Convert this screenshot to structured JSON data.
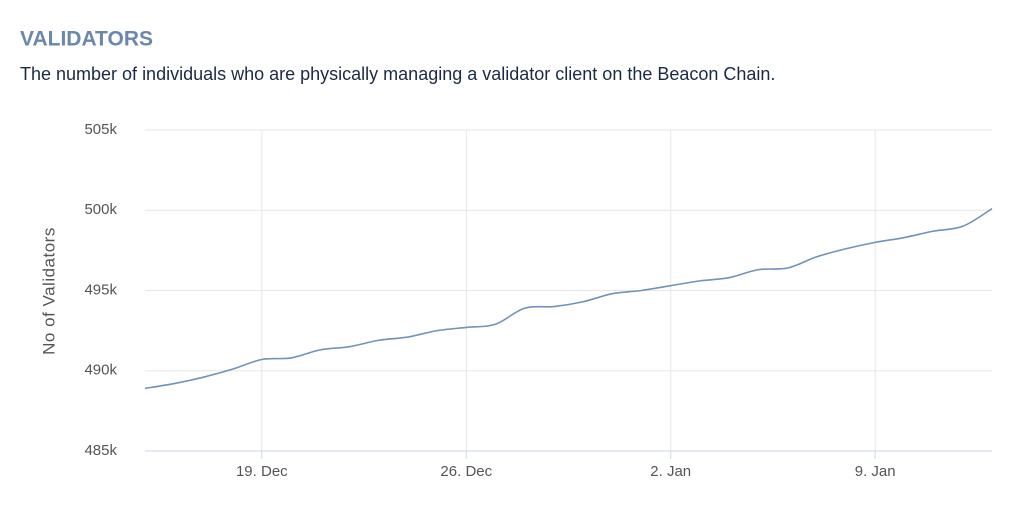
{
  "chart_data": {
    "type": "line",
    "title": "VALIDATORS",
    "subtitle": "The number of individuals who are physically managing a validator client on the Beacon Chain.",
    "y_label": "No of Validators",
    "categories": [
      null,
      null,
      null,
      null,
      "19. Dec",
      null,
      null,
      null,
      null,
      null,
      null,
      "26. Dec",
      null,
      null,
      null,
      null,
      null,
      null,
      "2. Jan",
      null,
      null,
      null,
      null,
      null,
      null,
      "9. Jan",
      null,
      null,
      null,
      null
    ],
    "series": [
      {
        "name": "Validators",
        "color": "#7092bb",
        "values": [
          488900,
          489200,
          489600,
          490100,
          490700,
          490800,
          491300,
          491500,
          491900,
          492100,
          492500,
          492700,
          492900,
          493900,
          494000,
          494300,
          494800,
          495000,
          495300,
          495600,
          495800,
          496300,
          496400,
          497100,
          497600,
          498000,
          498300,
          498700,
          499000,
          500100
        ]
      }
    ],
    "ylim": [
      485000,
      505000
    ],
    "yticks": [
      {
        "value": 485000,
        "label": "485k"
      },
      {
        "value": 490000,
        "label": "490k"
      },
      {
        "value": 495000,
        "label": "495k"
      },
      {
        "value": 500000,
        "label": "500k"
      },
      {
        "value": 505000,
        "label": "505k"
      }
    ],
    "grid": true
  }
}
